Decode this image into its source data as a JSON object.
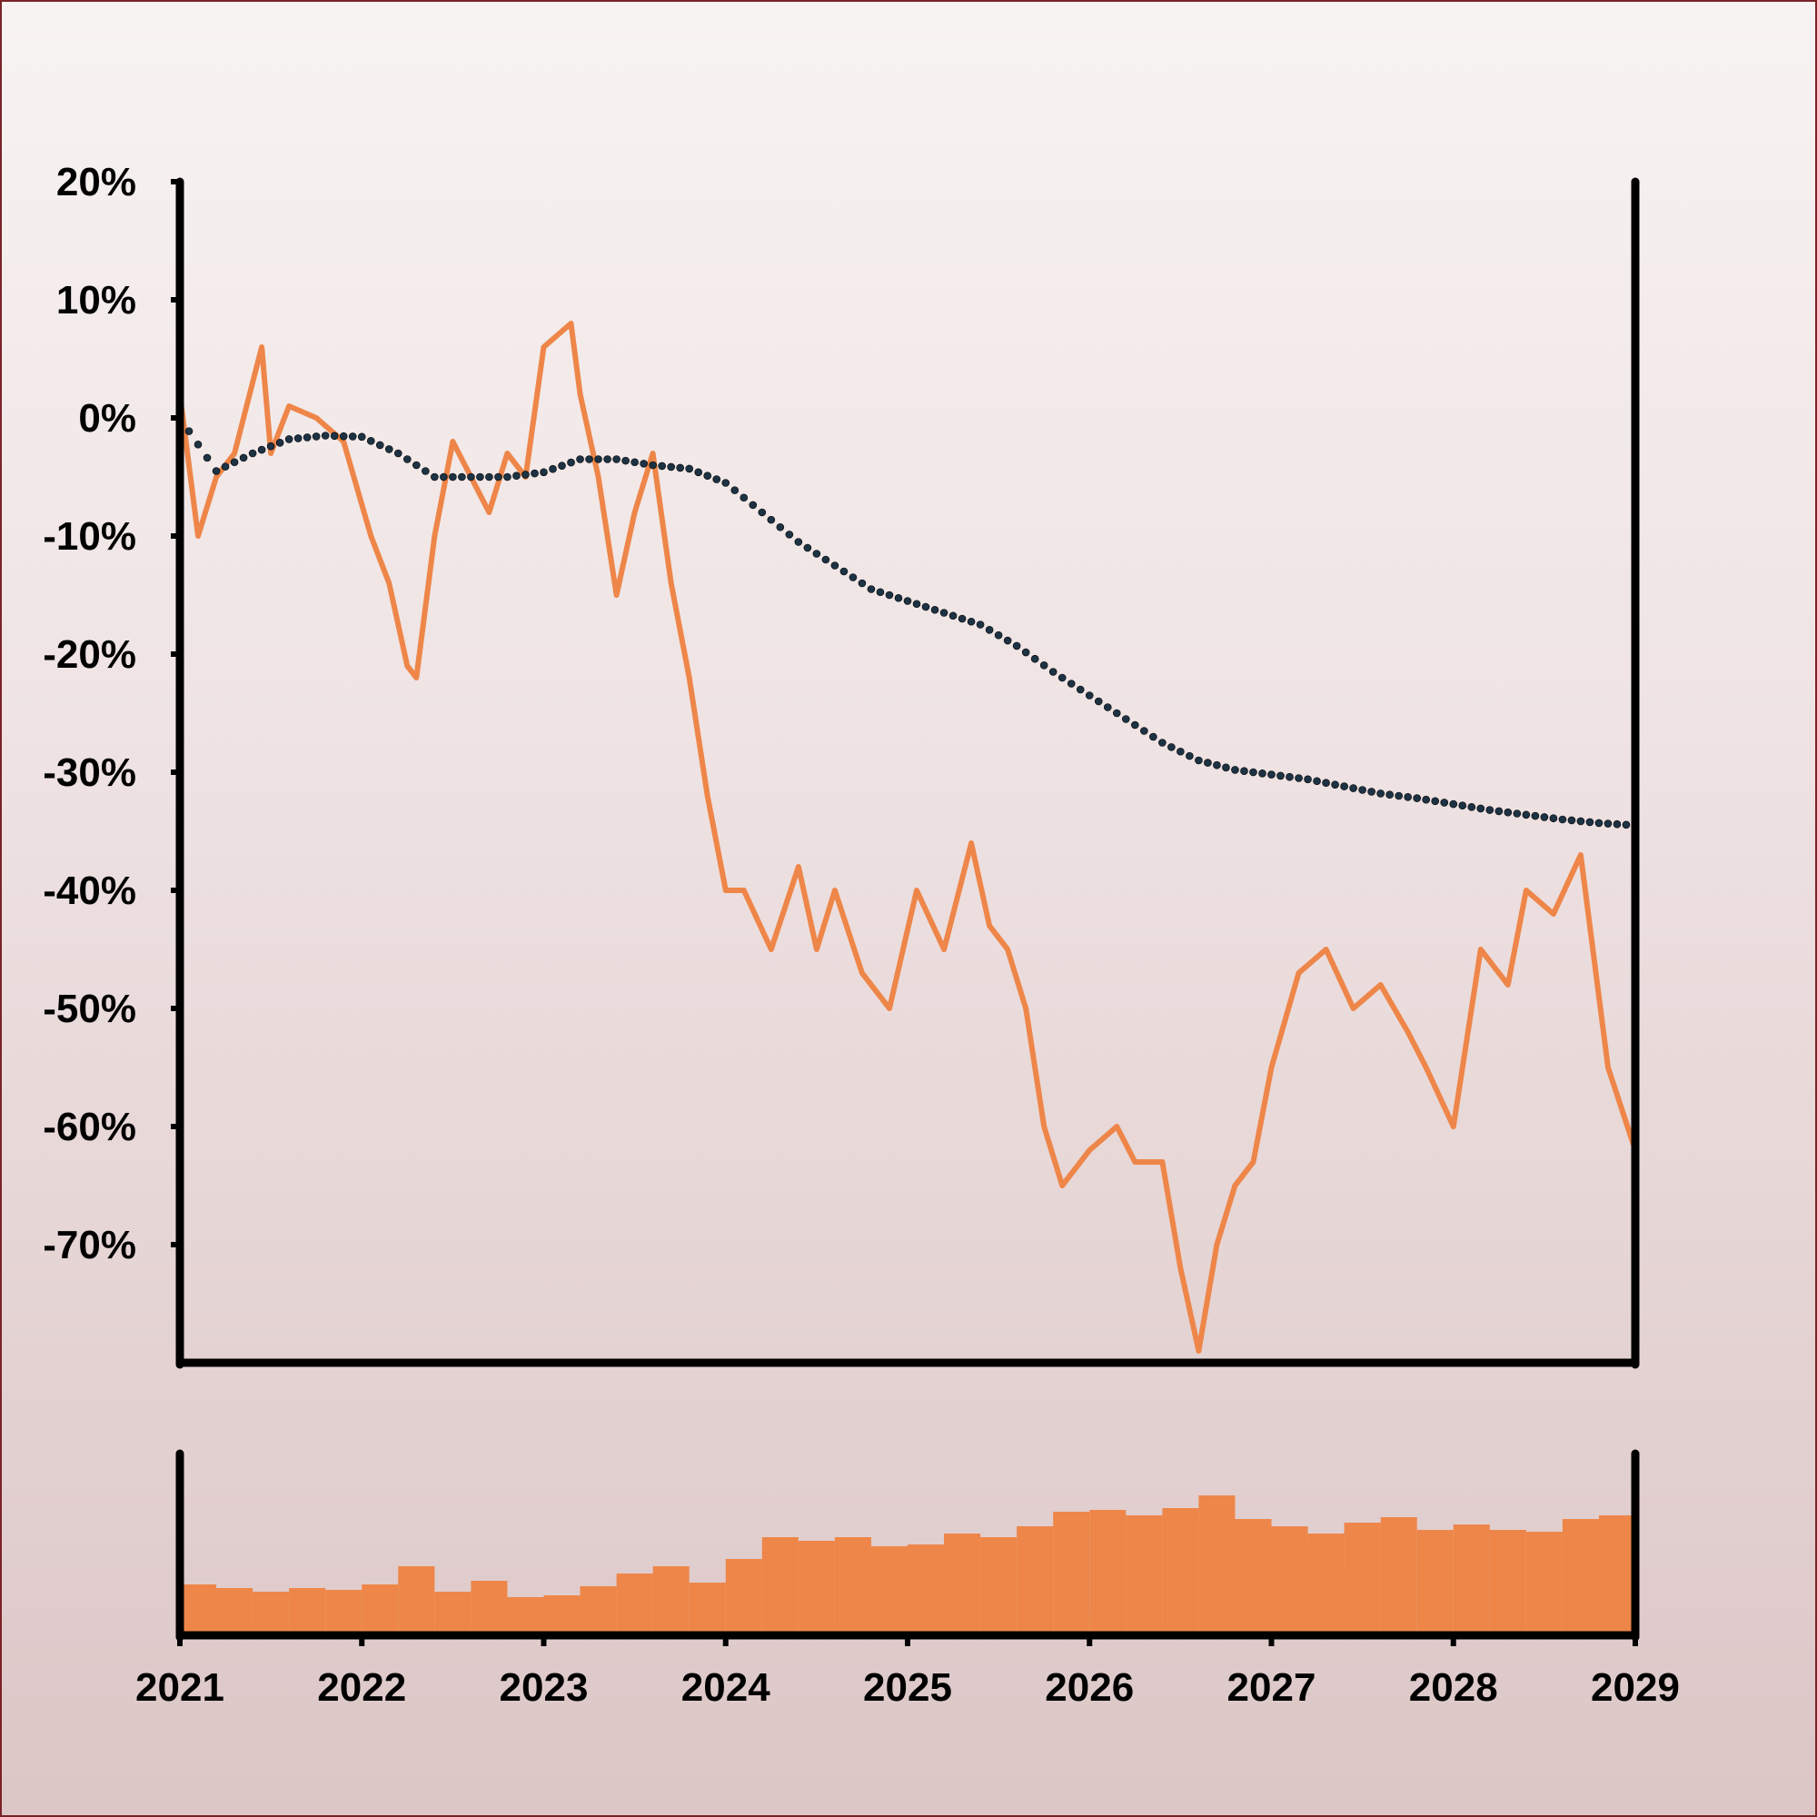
{
  "chart_data": [
    {
      "type": "line",
      "title": "",
      "xlabel": "",
      "ylabel": "",
      "xlim": [
        2021,
        2029
      ],
      "ylim": [
        -80,
        20
      ],
      "y_ticks": [
        20,
        10,
        0,
        -10,
        -20,
        -30,
        -40,
        -50,
        -60,
        -70
      ],
      "y_tick_labels": [
        "20%",
        "10%",
        "0%",
        "-10%",
        "-20%",
        "-30%",
        "-40%",
        "-50%",
        "-60%",
        "-70%"
      ],
      "x_ticks": [
        2021,
        2022,
        2023,
        2024,
        2025,
        2026,
        2027,
        2028,
        2029
      ],
      "x_tick_labels": [
        "2021",
        "2022",
        "2023",
        "2024",
        "2025",
        "2026",
        "2027",
        "2028",
        "2029"
      ],
      "grid": false,
      "colors": {
        "price": "#ee8649",
        "trend": "#1d3344"
      },
      "series": [
        {
          "name": "",
          "style": "solid",
          "x": [
            2021.0,
            2021.1,
            2021.2,
            2021.3,
            2021.45,
            2021.5,
            2021.6,
            2021.75,
            2021.9,
            2022.05,
            2022.15,
            2022.25,
            2022.3,
            2022.4,
            2022.5,
            2022.6,
            2022.7,
            2022.8,
            2022.9,
            2023.0,
            2023.15,
            2023.2,
            2023.3,
            2023.4,
            2023.5,
            2023.6,
            2023.7,
            2023.8,
            2023.9,
            2024.0,
            2024.1,
            2024.25,
            2024.4,
            2024.5,
            2024.6,
            2024.75,
            2024.9,
            2025.05,
            2025.2,
            2025.35,
            2025.45,
            2025.55,
            2025.65,
            2025.75,
            2025.85,
            2026.0,
            2026.15,
            2026.25,
            2026.4,
            2026.5,
            2026.6,
            2026.7,
            2026.8,
            2026.9,
            2027.0,
            2027.15,
            2027.3,
            2027.45,
            2027.6,
            2027.75,
            2027.85,
            2028.0,
            2028.15,
            2028.3,
            2028.4,
            2028.55,
            2028.7,
            2028.85,
            2029.0
          ],
          "y": [
            2,
            -10,
            -5,
            -3,
            6,
            -3,
            1,
            0,
            -2,
            -10,
            -14,
            -21,
            -22,
            -10,
            -2,
            -5,
            -8,
            -3,
            -5,
            6,
            8,
            2,
            -5,
            -15,
            -8,
            -3,
            -14,
            -22,
            -32,
            -40,
            -40,
            -45,
            -38,
            -45,
            -40,
            -47,
            -50,
            -40,
            -45,
            -36,
            -43,
            -45,
            -50,
            -60,
            -65,
            -62,
            -60,
            -63,
            -63,
            -72,
            -79,
            -70,
            -65,
            -63,
            -55,
            -47,
            -45,
            -50,
            -48,
            -52,
            -55,
            -60,
            -45,
            -48,
            -40,
            -42,
            -37,
            -55,
            -62
          ]
        },
        {
          "name": "",
          "style": "dotted",
          "x": [
            2021.0,
            2021.2,
            2021.4,
            2021.6,
            2021.8,
            2022.0,
            2022.2,
            2022.4,
            2022.6,
            2022.8,
            2023.0,
            2023.2,
            2023.4,
            2023.6,
            2023.8,
            2024.0,
            2024.2,
            2024.4,
            2024.6,
            2024.8,
            2025.0,
            2025.2,
            2025.4,
            2025.6,
            2025.8,
            2026.0,
            2026.2,
            2026.4,
            2026.6,
            2026.8,
            2027.0,
            2027.2,
            2027.4,
            2027.6,
            2027.8,
            2028.0,
            2028.2,
            2028.4,
            2028.6,
            2028.8,
            2029.0
          ],
          "y": [
            0,
            -4.5,
            -3,
            -1.8,
            -1.5,
            -1.6,
            -3,
            -5,
            -5,
            -5,
            -4.6,
            -3.5,
            -3.5,
            -4,
            -4.3,
            -5.5,
            -8,
            -10.5,
            -12.5,
            -14.5,
            -15.5,
            -16.5,
            -17.5,
            -19.3,
            -21.5,
            -23.5,
            -25.5,
            -27.5,
            -29,
            -29.8,
            -30.2,
            -30.6,
            -31.2,
            -31.8,
            -32.2,
            -32.7,
            -33.2,
            -33.6,
            -34,
            -34.3,
            -34.5
          ]
        }
      ]
    },
    {
      "type": "bar",
      "title": "",
      "xlabel": "",
      "ylabel": "",
      "xlim": [
        2021,
        2029
      ],
      "ylim": [
        0,
        100
      ],
      "color": "#ee8649",
      "x": [
        2021.1,
        2021.3,
        2021.5,
        2021.7,
        2021.9,
        2022.1,
        2022.3,
        2022.5,
        2022.7,
        2022.9,
        2023.1,
        2023.3,
        2023.5,
        2023.7,
        2023.9,
        2024.1,
        2024.3,
        2024.5,
        2024.7,
        2024.9,
        2025.1,
        2025.3,
        2025.5,
        2025.7,
        2025.9,
        2026.1,
        2026.3,
        2026.5,
        2026.7,
        2026.9,
        2027.1,
        2027.3,
        2027.5,
        2027.7,
        2027.9,
        2028.1,
        2028.3,
        2028.5,
        2028.7,
        2028.9
      ],
      "values": [
        28,
        26,
        24,
        26,
        25,
        28,
        38,
        24,
        30,
        21,
        22,
        27,
        34,
        38,
        29,
        42,
        54,
        52,
        54,
        49,
        50,
        56,
        54,
        60,
        68,
        69,
        66,
        70,
        77,
        64,
        60,
        56,
        62,
        65,
        58,
        61,
        58,
        57,
        64,
        66
      ]
    }
  ]
}
